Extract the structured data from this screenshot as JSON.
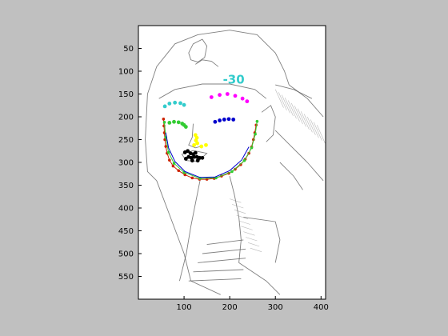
{
  "figure": {
    "background": "#c0c0c0",
    "axes": {
      "xlim": [
        0,
        410
      ],
      "ylim": [
        0,
        600
      ],
      "y_reversed": true,
      "xticks": [
        100,
        200,
        300,
        400
      ],
      "yticks": [
        50,
        100,
        150,
        200,
        250,
        300,
        350,
        400,
        450,
        500,
        550
      ],
      "xtick_labels": [
        "100",
        "200",
        "300",
        "400"
      ],
      "ytick_labels": [
        "50",
        "100",
        "150",
        "200",
        "250",
        "300",
        "350",
        "400",
        "450",
        "500",
        "550"
      ]
    },
    "image": {
      "description": "pencil sketch of a pharaoh face with nemes headdress",
      "paper_color": "#f4f4f4",
      "line_color": "#555555"
    },
    "annotations": [
      {
        "text": "-30",
        "color": "#33cccc",
        "x": 185,
        "y": 127
      }
    ],
    "landmarks": [
      {
        "name": "magenta-brow",
        "color": "#ff00ff",
        "points": [
          [
            160,
            157
          ],
          [
            178,
            152
          ],
          [
            195,
            150
          ],
          [
            212,
            154
          ],
          [
            228,
            160
          ],
          [
            238,
            166
          ]
        ]
      },
      {
        "name": "cyan-brow",
        "color": "#33cccc",
        "points": [
          [
            58,
            177
          ],
          [
            68,
            171
          ],
          [
            80,
            169
          ],
          [
            92,
            170
          ],
          [
            100,
            174
          ]
        ]
      },
      {
        "name": "blue-eye",
        "color": "#0000cc",
        "points": [
          [
            168,
            211
          ],
          [
            178,
            208
          ],
          [
            188,
            206
          ],
          [
            198,
            205
          ],
          [
            208,
            206
          ]
        ]
      },
      {
        "name": "green-eye",
        "color": "#33cc33",
        "points": [
          [
            68,
            213
          ],
          [
            78,
            211
          ],
          [
            88,
            212
          ],
          [
            96,
            215
          ],
          [
            100,
            218
          ],
          [
            104,
            222
          ]
        ]
      },
      {
        "name": "yellow-nose",
        "color": "#ffff00",
        "points": [
          [
            125,
            240
          ],
          [
            128,
            246
          ],
          [
            126,
            252
          ],
          [
            129,
            258
          ],
          [
            122,
            262
          ],
          [
            138,
            265
          ],
          [
            148,
            262
          ]
        ]
      },
      {
        "name": "black-mouth",
        "color": "#000000",
        "points": [
          [
            102,
            278
          ],
          [
            108,
            275
          ],
          [
            114,
            280
          ],
          [
            120,
            282
          ],
          [
            125,
            279
          ],
          [
            110,
            288
          ],
          [
            116,
            290
          ],
          [
            122,
            288
          ],
          [
            128,
            288
          ],
          [
            134,
            290
          ],
          [
            104,
            292
          ],
          [
            130,
            296
          ],
          [
            118,
            296
          ],
          [
            140,
            290
          ]
        ]
      },
      {
        "name": "red-outline",
        "color": "#cc2200",
        "points": [
          [
            55,
            205
          ],
          [
            56,
            220
          ],
          [
            57,
            235
          ],
          [
            58,
            250
          ],
          [
            60,
            265
          ],
          [
            63,
            280
          ],
          [
            68,
            295
          ],
          [
            76,
            308
          ],
          [
            88,
            318
          ],
          [
            102,
            327
          ],
          [
            118,
            334
          ],
          [
            134,
            337
          ],
          [
            150,
            337
          ],
          [
            166,
            335
          ],
          [
            182,
            330
          ],
          [
            198,
            324
          ],
          [
            212,
            315
          ],
          [
            224,
            305
          ],
          [
            234,
            293
          ],
          [
            242,
            280
          ],
          [
            248,
            266
          ],
          [
            252,
            250
          ],
          [
            255,
            235
          ],
          [
            258,
            218
          ]
        ]
      },
      {
        "name": "green-outline",
        "color": "#33cc33",
        "points": [
          [
            57,
            212
          ],
          [
            60,
            245
          ],
          [
            66,
            278
          ],
          [
            78,
            302
          ],
          [
            100,
            322
          ],
          [
            135,
            335
          ],
          [
            170,
            334
          ],
          [
            205,
            320
          ],
          [
            232,
            296
          ],
          [
            248,
            268
          ],
          [
            256,
            238
          ],
          [
            260,
            210
          ]
        ]
      },
      {
        "name": "blue-outline",
        "color": "#0000cc",
        "points": [
          [
            60,
            235
          ],
          [
            66,
            268
          ],
          [
            80,
            298
          ],
          [
            102,
            320
          ],
          [
            135,
            333
          ],
          [
            168,
            332
          ],
          [
            200,
            318
          ],
          [
            226,
            295
          ],
          [
            242,
            266
          ]
        ]
      }
    ]
  }
}
